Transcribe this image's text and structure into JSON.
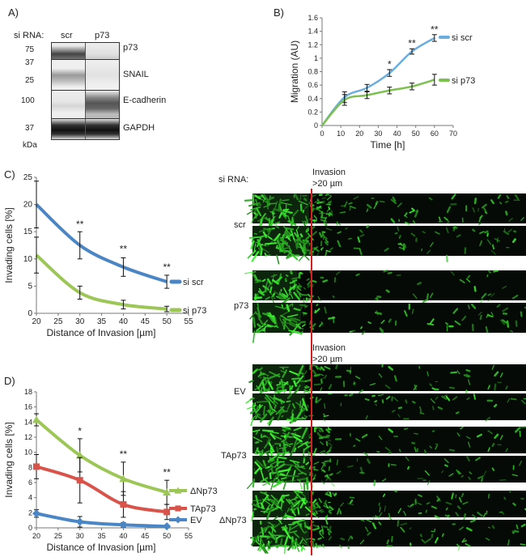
{
  "panelA": {
    "letter": "A)",
    "sirna_label": "si RNA:",
    "lanes": [
      "scr",
      "p73"
    ],
    "kda_label": "kDa",
    "blots": [
      {
        "protein": "p73",
        "markers": [
          "75"
        ]
      },
      {
        "protein": "SNAIL",
        "markers": [
          "37",
          "25"
        ]
      },
      {
        "protein": "E-cadherin",
        "markers": [
          "100"
        ]
      },
      {
        "protein": "GAPDH",
        "markers": [
          "37"
        ]
      }
    ]
  },
  "panelB": {
    "letter": "B)",
    "chart_data": {
      "type": "line",
      "xlabel": "Time [h]",
      "ylabel": "Migration (AU)",
      "xlim": [
        0,
        70
      ],
      "ylim": [
        0,
        1.6
      ],
      "xticks": [
        "0",
        "10",
        "20",
        "30",
        "40",
        "50",
        "60",
        "70"
      ],
      "yticks": [
        "0",
        "0.2",
        "0.4",
        "0.6",
        "0.8",
        "1",
        "1.2",
        "1.4",
        "1.6"
      ],
      "x": [
        0,
        12,
        24,
        36,
        48,
        60
      ],
      "series": [
        {
          "name": "si scr",
          "color": "#6aaee0",
          "values": [
            0,
            0.42,
            0.56,
            0.78,
            1.1,
            1.3
          ],
          "errors": [
            0,
            0.08,
            0.05,
            0.05,
            0.04,
            0.05
          ]
        },
        {
          "name": "si p73",
          "color": "#7cc150",
          "values": [
            0,
            0.38,
            0.45,
            0.52,
            0.58,
            0.68
          ],
          "errors": [
            0,
            0.08,
            0.05,
            0.05,
            0.05,
            0.08
          ]
        }
      ],
      "annotations": [
        {
          "x": 36,
          "y": 0.86,
          "text": "*"
        },
        {
          "x": 48,
          "y": 1.17,
          "text": "**"
        },
        {
          "x": 60,
          "y": 1.38,
          "text": "**"
        }
      ]
    }
  },
  "panelC": {
    "letter": "C)",
    "chart_data": {
      "type": "line",
      "xlabel": "Distance of Invasion [µm]",
      "ylabel": "Invading cells [%]",
      "xlim": [
        20,
        55
      ],
      "ylim": [
        0,
        25
      ],
      "xticks": [
        "20",
        "25",
        "30",
        "35",
        "40",
        "45",
        "50",
        "55"
      ],
      "yticks": [
        "0",
        "5",
        "10",
        "15",
        "20",
        "25"
      ],
      "x": [
        20,
        30,
        40,
        50
      ],
      "series": [
        {
          "name": "si scr",
          "color": "#4a86c6",
          "values": [
            20,
            12.5,
            8.5,
            5.8
          ],
          "errors": [
            4.3,
            2.5,
            1.7,
            1.2
          ]
        },
        {
          "name": "si p73",
          "color": "#9cc655",
          "values": [
            10.7,
            3.8,
            1.6,
            0.8
          ],
          "errors": [
            3.3,
            1.2,
            0.8,
            0.5
          ]
        }
      ],
      "annotations": [
        {
          "x": 30,
          "y": 15.8,
          "text": "**"
        },
        {
          "x": 40,
          "y": 11.2,
          "text": "**"
        },
        {
          "x": 50,
          "y": 7.9,
          "text": "**"
        }
      ]
    }
  },
  "panelD": {
    "letter": "D)",
    "chart_data": {
      "type": "line",
      "xlabel": "Distance of Invasion [µm]",
      "ylabel": "Invading cells [%]",
      "xlim": [
        20,
        55
      ],
      "ylim": [
        0,
        18
      ],
      "xticks": [
        "20",
        "25",
        "30",
        "35",
        "40",
        "45",
        "50",
        "55"
      ],
      "yticks": [
        "0",
        "2",
        "4",
        "6",
        "8",
        "10",
        "12",
        "14",
        "16",
        "18"
      ],
      "x": [
        20,
        30,
        40,
        50
      ],
      "series": [
        {
          "name": "ΔNp73",
          "color": "#9cc655",
          "marker": "triangle",
          "values": [
            14.3,
            9.6,
            6.5,
            4.7
          ],
          "errors": [
            0.8,
            2.2,
            2.2,
            1.6
          ]
        },
        {
          "name": "TAp73",
          "color": "#d9534a",
          "marker": "square",
          "values": [
            8.1,
            6.3,
            3.1,
            2.1
          ],
          "errors": [
            1.6,
            3.0,
            1.7,
            1.0
          ]
        },
        {
          "name": "EV",
          "color": "#4a86c6",
          "marker": "diamond",
          "values": [
            1.9,
            0.8,
            0.4,
            0.2
          ],
          "errors": [
            0.5,
            0.7,
            0.3,
            0.2
          ]
        }
      ],
      "annotations": [
        {
          "x": 30,
          "y": 12.4,
          "text": "*"
        },
        {
          "x": 40,
          "y": 9.3,
          "text": "**"
        },
        {
          "x": 50,
          "y": 6.9,
          "text": "**"
        }
      ]
    }
  },
  "imagesC": {
    "sirna_label": "si RNA:",
    "invasion_label": "Invasion",
    "invasion_sub": ">20 µm",
    "groups": [
      {
        "label": "scr"
      },
      {
        "label": "p73"
      }
    ]
  },
  "imagesD": {
    "invasion_label": "Invasion",
    "invasion_sub": ">20 µm",
    "groups": [
      {
        "label": "EV"
      },
      {
        "label": "TAp73"
      },
      {
        "label": "ΔNp73"
      }
    ]
  }
}
